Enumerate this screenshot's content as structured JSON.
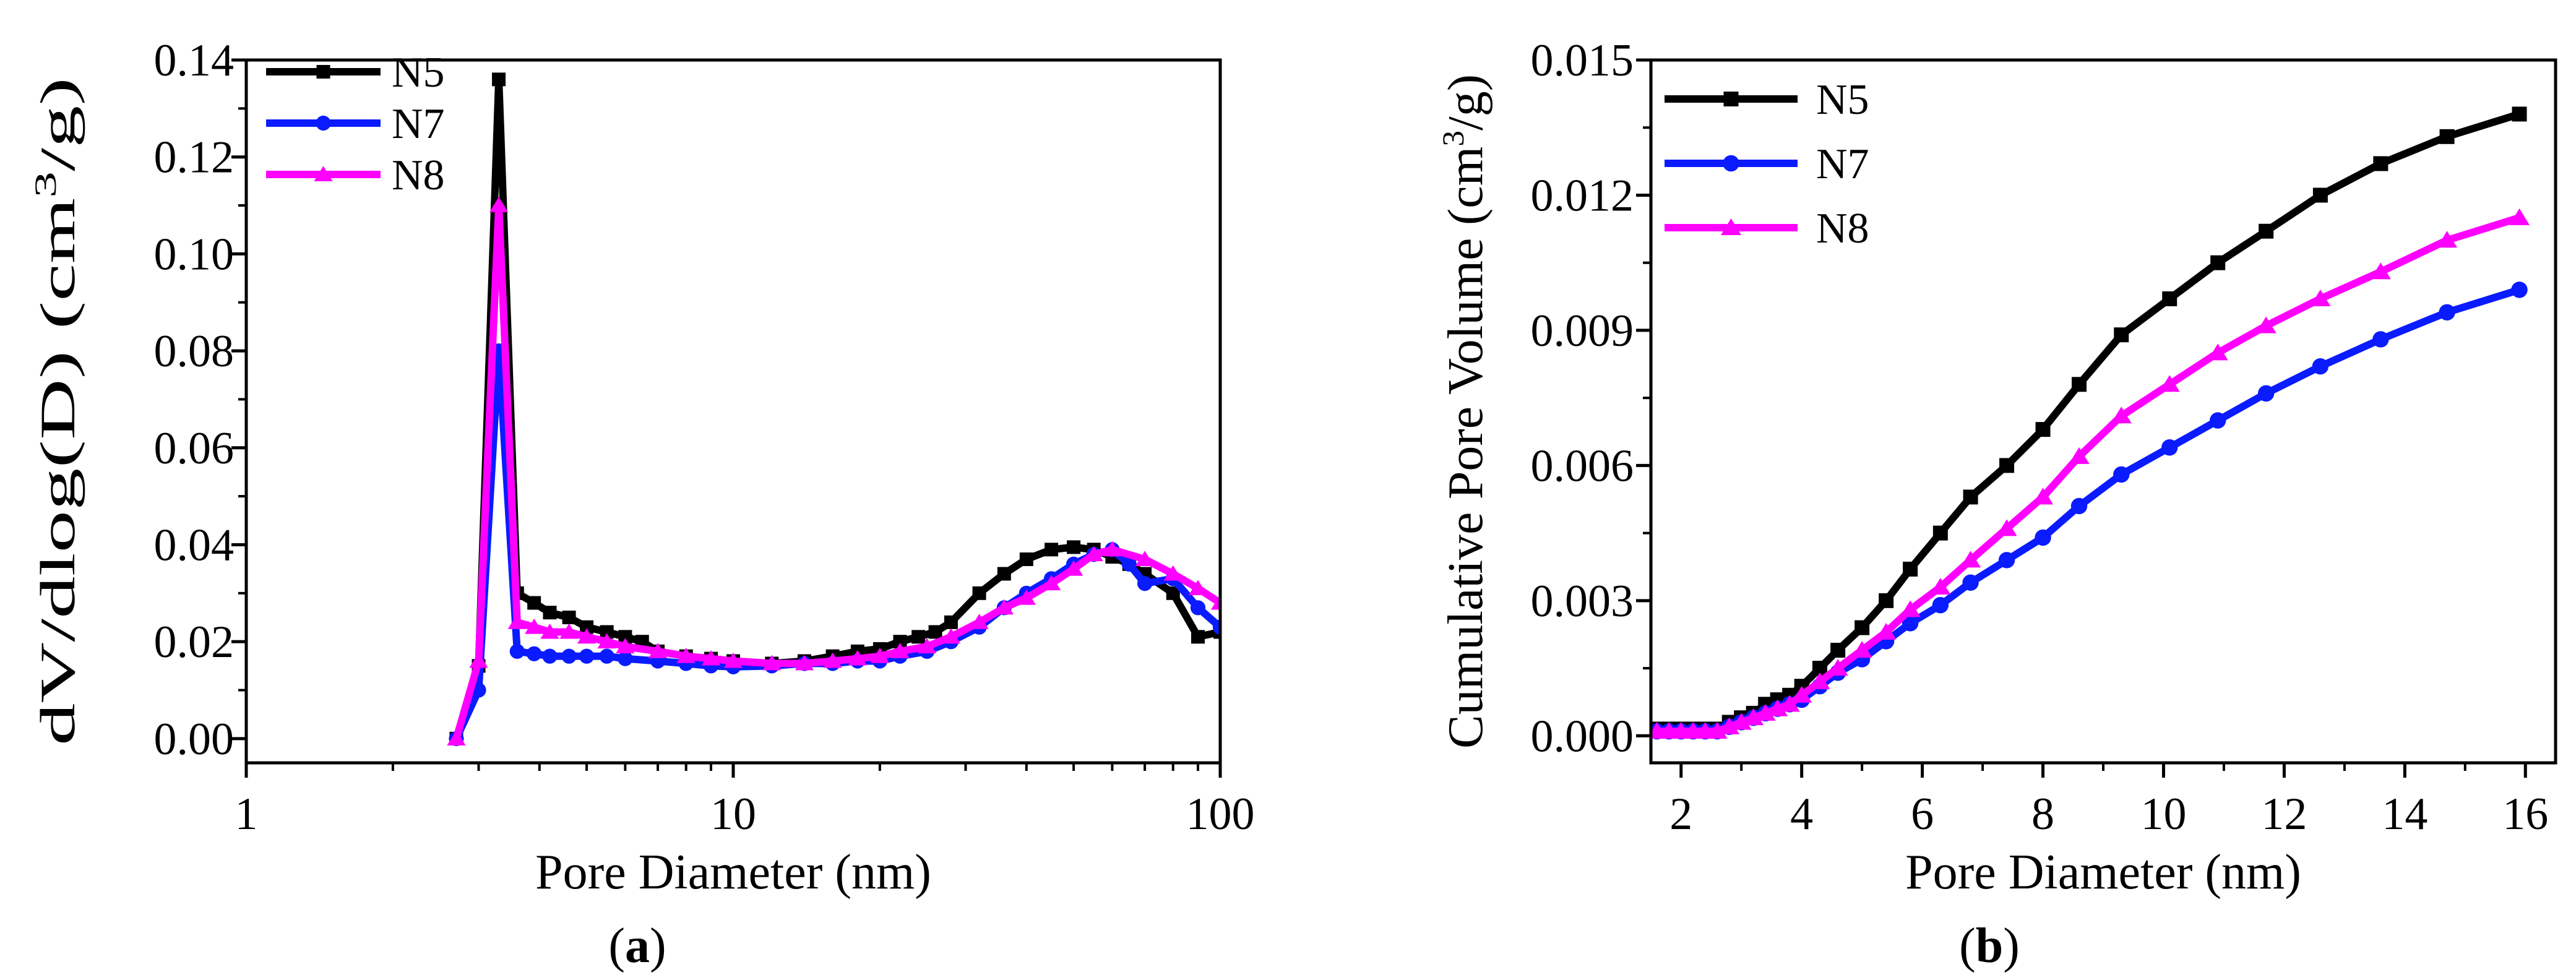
{
  "figure": {
    "caption_a": {
      "open": "(",
      "letter": "a",
      "close": ")"
    },
    "caption_b": {
      "open": "(",
      "letter": "b",
      "close": ")"
    }
  },
  "colors": {
    "N5": "#000000",
    "N7": "#0a1bff",
    "N8": "#ff00ff",
    "axis": "#000000"
  },
  "chart_data": [
    {
      "id": "a",
      "type": "line",
      "xscale": "log",
      "xlabel": "Pore Diameter (nm)",
      "ylabel_parts": [
        "dV/dlog(D) (cm",
        "3",
        "/g)"
      ],
      "xlim": [
        1,
        100
      ],
      "ylim": [
        -0.005,
        0.14
      ],
      "xticks": [
        1,
        10,
        100
      ],
      "xtick_labels": [
        "1",
        "10",
        "100"
      ],
      "yticks": [
        0,
        0.02,
        0.04,
        0.06,
        0.08,
        0.1,
        0.12,
        0.14
      ],
      "ytick_labels": [
        "0.00",
        "0.02",
        "0.04",
        "0.06",
        "0.08",
        "0.10",
        "0.12",
        "0.14"
      ],
      "legend_position": "top-left",
      "series": [
        {
          "name": "N5",
          "marker": "square",
          "x": [
            2.7,
            3.0,
            3.3,
            3.6,
            3.9,
            4.2,
            4.6,
            5.0,
            5.5,
            6.0,
            6.5,
            7.0,
            8.0,
            9.0,
            10.0,
            12.0,
            14.0,
            16.0,
            18.0,
            20.0,
            22.0,
            24.0,
            26.0,
            28.0,
            32.0,
            36.0,
            40.0,
            45.0,
            50.0,
            55.0,
            60.0,
            65.0,
            70.0,
            80.0,
            90.0,
            100.0
          ],
          "y": [
            0.0,
            0.015,
            0.136,
            0.03,
            0.028,
            0.026,
            0.025,
            0.023,
            0.022,
            0.021,
            0.02,
            0.018,
            0.017,
            0.0165,
            0.016,
            0.0155,
            0.016,
            0.017,
            0.018,
            0.0185,
            0.02,
            0.021,
            0.022,
            0.024,
            0.03,
            0.034,
            0.037,
            0.039,
            0.0395,
            0.039,
            0.0375,
            0.036,
            0.034,
            0.03,
            0.021,
            0.022
          ]
        },
        {
          "name": "N7",
          "marker": "circle",
          "x": [
            2.7,
            3.0,
            3.3,
            3.6,
            3.9,
            4.2,
            4.6,
            5.0,
            5.5,
            6.0,
            7.0,
            8.0,
            9.0,
            10.0,
            12.0,
            14.0,
            16.0,
            18.0,
            20.0,
            22.0,
            25.0,
            28.0,
            32.0,
            36.0,
            40.0,
            45.0,
            50.0,
            55.0,
            60.0,
            65.0,
            70.0,
            80.0,
            90.0,
            100.0
          ],
          "y": [
            0.0,
            0.01,
            0.08,
            0.018,
            0.0175,
            0.017,
            0.017,
            0.017,
            0.017,
            0.0165,
            0.016,
            0.0155,
            0.015,
            0.0148,
            0.015,
            0.0155,
            0.0155,
            0.016,
            0.016,
            0.017,
            0.018,
            0.02,
            0.023,
            0.027,
            0.03,
            0.033,
            0.036,
            0.038,
            0.039,
            0.036,
            0.032,
            0.033,
            0.027,
            0.023
          ]
        },
        {
          "name": "N8",
          "marker": "triangle",
          "x": [
            2.7,
            3.0,
            3.3,
            3.6,
            3.9,
            4.2,
            4.6,
            5.0,
            5.5,
            6.0,
            7.0,
            8.0,
            9.0,
            10.0,
            12.0,
            14.0,
            16.0,
            18.0,
            20.0,
            22.0,
            25.0,
            28.0,
            32.0,
            36.0,
            40.0,
            45.0,
            50.0,
            55.0,
            60.0,
            70.0,
            80.0,
            90.0,
            100.0
          ],
          "y": [
            0.0,
            0.016,
            0.11,
            0.024,
            0.023,
            0.022,
            0.022,
            0.021,
            0.02,
            0.019,
            0.018,
            0.017,
            0.0165,
            0.016,
            0.0155,
            0.0155,
            0.016,
            0.0165,
            0.017,
            0.018,
            0.019,
            0.021,
            0.024,
            0.027,
            0.029,
            0.032,
            0.035,
            0.038,
            0.039,
            0.037,
            0.034,
            0.031,
            0.028
          ]
        }
      ]
    },
    {
      "id": "b",
      "type": "line",
      "xscale": "linear",
      "xlabel": "Pore Diameter (nm)",
      "ylabel_parts": [
        "Cumulative Pore Volume (cm",
        "3",
        "/g)"
      ],
      "xlim": [
        1.5,
        16.5
      ],
      "ylim": [
        -0.0006,
        0.015
      ],
      "xticks": [
        2,
        4,
        6,
        8,
        10,
        12,
        14,
        16
      ],
      "xtick_labels": [
        "2",
        "4",
        "6",
        "8",
        "10",
        "12",
        "14",
        "16"
      ],
      "yticks": [
        0,
        0.003,
        0.006,
        0.009,
        0.012,
        0.015
      ],
      "ytick_labels": [
        "0.000",
        "0.003",
        "0.006",
        "0.009",
        "0.012",
        "0.015"
      ],
      "legend_position": "top-left",
      "series": [
        {
          "name": "N5",
          "marker": "square",
          "x": [
            1.6,
            1.8,
            2.0,
            2.2,
            2.4,
            2.6,
            2.8,
            3.0,
            3.2,
            3.4,
            3.6,
            3.8,
            4.0,
            4.3,
            4.6,
            5.0,
            5.4,
            5.8,
            6.3,
            6.8,
            7.4,
            8.0,
            8.6,
            9.3,
            10.1,
            10.9,
            11.7,
            12.6,
            13.6,
            14.7,
            15.9
          ],
          "y": [
            0.00015,
            0.00015,
            0.00015,
            0.00015,
            0.00015,
            0.00015,
            0.0003,
            0.0004,
            0.0005,
            0.0007,
            0.0008,
            0.0009,
            0.0011,
            0.0015,
            0.0019,
            0.0024,
            0.003,
            0.0037,
            0.0045,
            0.0053,
            0.006,
            0.0068,
            0.0078,
            0.0089,
            0.0097,
            0.0105,
            0.0112,
            0.012,
            0.0127,
            0.0133,
            0.0138
          ]
        },
        {
          "name": "N7",
          "marker": "circle",
          "x": [
            1.6,
            1.8,
            2.0,
            2.2,
            2.4,
            2.6,
            2.8,
            3.0,
            3.2,
            3.4,
            3.6,
            3.8,
            4.0,
            4.3,
            4.6,
            5.0,
            5.4,
            5.8,
            6.3,
            6.8,
            7.4,
            8.0,
            8.6,
            9.3,
            10.1,
            10.9,
            11.7,
            12.6,
            13.6,
            14.7,
            15.9
          ],
          "y": [
            0.0001,
            0.0001,
            0.0001,
            0.0001,
            0.0001,
            0.0001,
            0.0002,
            0.0003,
            0.0004,
            0.0005,
            0.0006,
            0.0007,
            0.0008,
            0.0011,
            0.0014,
            0.0017,
            0.0021,
            0.0025,
            0.0029,
            0.0034,
            0.0039,
            0.0044,
            0.0051,
            0.0058,
            0.0064,
            0.007,
            0.0076,
            0.0082,
            0.0088,
            0.0094,
            0.0099
          ]
        },
        {
          "name": "N8",
          "marker": "triangle",
          "x": [
            1.6,
            1.8,
            2.0,
            2.2,
            2.4,
            2.6,
            2.8,
            3.0,
            3.2,
            3.4,
            3.6,
            3.8,
            4.0,
            4.3,
            4.6,
            5.0,
            5.4,
            5.8,
            6.3,
            6.8,
            7.4,
            8.0,
            8.6,
            9.3,
            10.1,
            10.9,
            11.7,
            12.6,
            13.6,
            14.7,
            15.9
          ],
          "y": [
            0.0001,
            0.0001,
            0.0001,
            0.0001,
            0.0001,
            0.0001,
            0.0002,
            0.0003,
            0.0004,
            0.0005,
            0.0006,
            0.0007,
            0.0009,
            0.0012,
            0.0015,
            0.0019,
            0.0023,
            0.0028,
            0.0033,
            0.0039,
            0.0046,
            0.0053,
            0.0062,
            0.0071,
            0.0078,
            0.0085,
            0.0091,
            0.0097,
            0.0103,
            0.011,
            0.0115
          ]
        }
      ]
    }
  ]
}
